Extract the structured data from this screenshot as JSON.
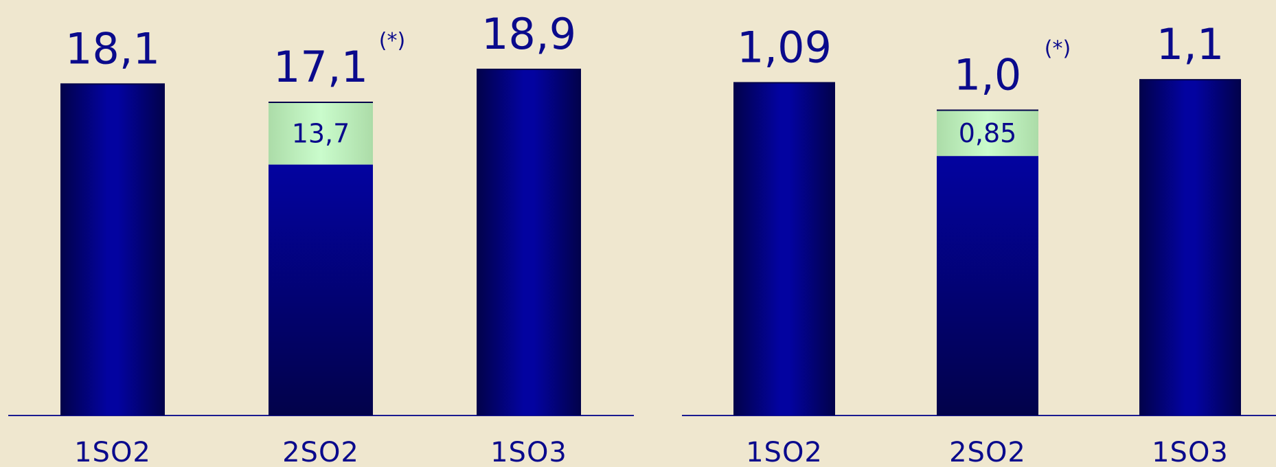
{
  "chart_data": [
    {
      "type": "bar",
      "categories": [
        "1SO2",
        "2SO2",
        "1SO3"
      ],
      "values": [
        18.1,
        17.1,
        18.9
      ],
      "value_labels": [
        "18,1",
        "17,1",
        "18,9"
      ],
      "footnote_marks": [
        "",
        "(*)",
        ""
      ],
      "stacked_segment": {
        "category": "2SO2",
        "value": 13.7,
        "label": "13,7"
      },
      "ylim": [
        0,
        19.5
      ],
      "grid": false,
      "colors": {
        "bar": "#02029a",
        "bar_dark": "#02024a",
        "top_segment": "#c6f8c8",
        "axis": "#1a1a90"
      }
    },
    {
      "type": "bar",
      "categories": [
        "1SO2",
        "2SO2",
        "1SO3"
      ],
      "values": [
        1.09,
        1.0,
        1.1
      ],
      "value_labels": [
        "1,09",
        "1,0",
        "1,1"
      ],
      "footnote_marks": [
        "",
        "(*)",
        ""
      ],
      "stacked_segment": {
        "category": "2SO2",
        "value": 0.85,
        "label": "0,85"
      },
      "ylim": [
        0,
        1.17
      ],
      "grid": false,
      "colors": {
        "bar": "#02029a",
        "bar_dark": "#02024a",
        "top_segment": "#c6f8c8",
        "axis": "#1a1a90"
      }
    }
  ]
}
